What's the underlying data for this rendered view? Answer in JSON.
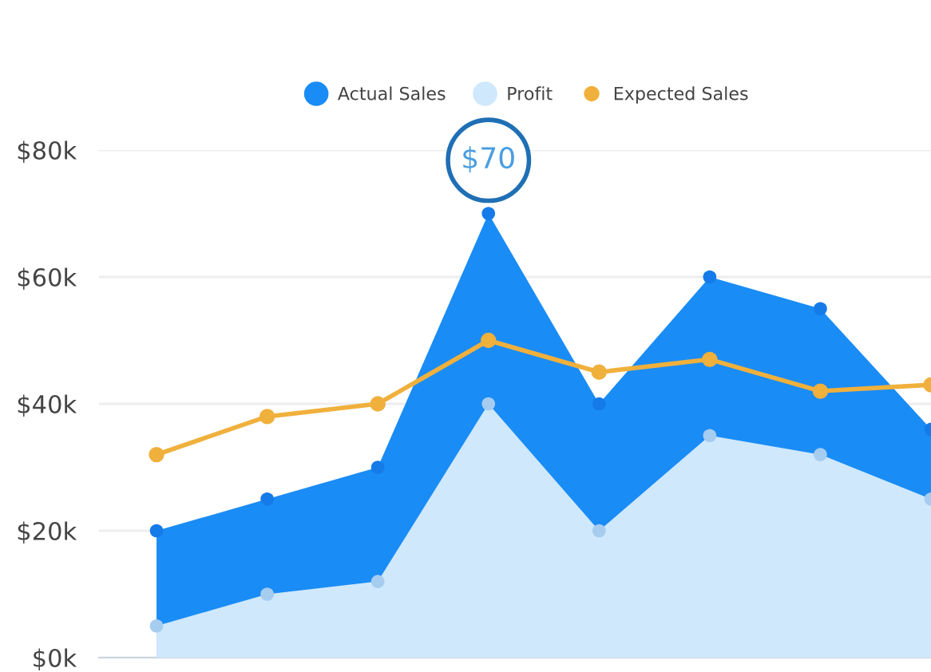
{
  "chart_data": {
    "type": "area",
    "categories": [
      null,
      null,
      null,
      null,
      null,
      null,
      null,
      null
    ],
    "series": [
      {
        "name": "Actual Sales",
        "color": "#1a8cf5",
        "values": [
          20000,
          25000,
          30000,
          70000,
          40000,
          60000,
          55000,
          36000
        ]
      },
      {
        "name": "Profit",
        "color": "#cfe8fc",
        "values": [
          5000,
          10000,
          12000,
          40000,
          20000,
          35000,
          32000,
          25000
        ]
      },
      {
        "name": "Expected Sales",
        "color": "#f0b03c",
        "type": "line",
        "values": [
          32000,
          38000,
          40000,
          50000,
          45000,
          47000,
          42000,
          43000
        ]
      }
    ],
    "ylim": [
      0,
      80000
    ],
    "yticks": [
      {
        "value": 0,
        "label": "$0k"
      },
      {
        "value": 20000,
        "label": "$20k"
      },
      {
        "value": 40000,
        "label": "$40k"
      },
      {
        "value": 60000,
        "label": "$60k"
      },
      {
        "value": 80000,
        "label": "$80k"
      }
    ],
    "annotations": [
      "$70"
    ],
    "grid": "y",
    "legend": "top right",
    "marker": "circle"
  }
}
